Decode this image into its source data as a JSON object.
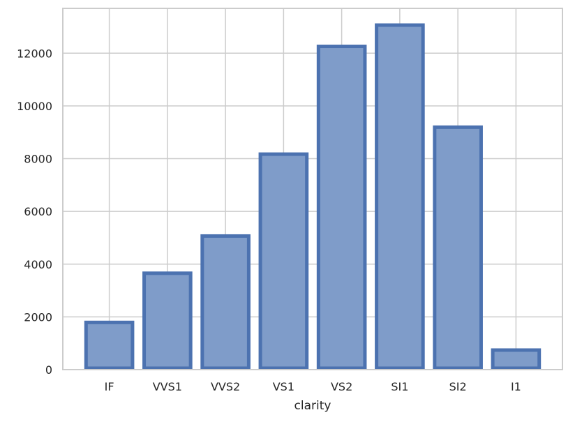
{
  "chart_data": {
    "type": "bar",
    "categories": [
      "IF",
      "VVS1",
      "VVS2",
      "VS1",
      "VS2",
      "SI1",
      "SI2",
      "I1"
    ],
    "values": [
      1790,
      3655,
      5066,
      8171,
      12258,
      13065,
      9194,
      741
    ],
    "xlabel": "clarity",
    "ylabel": "",
    "ylim": [
      0,
      13700
    ],
    "yticks": [
      0,
      2000,
      4000,
      6000,
      8000,
      10000,
      12000
    ],
    "grid": true,
    "colors": {
      "bar_fill": "#7f9cc9",
      "bar_edge": "#4c72b0",
      "grid": "#cccccc",
      "frame": "#cccccc",
      "text": "#262626"
    }
  }
}
